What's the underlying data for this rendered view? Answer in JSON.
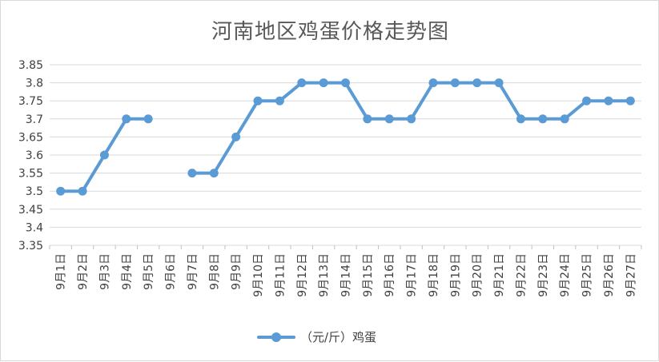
{
  "chart_data": {
    "type": "line",
    "title": "河南地区鸡蛋价格走势图",
    "categories": [
      "9月1日",
      "9月2日",
      "9月3日",
      "9月4日",
      "9月5日",
      "9月6日",
      "9月7日",
      "9月8日",
      "9月9日",
      "9月10日",
      "9月11日",
      "9月12日",
      "9月13日",
      "9月14日",
      "9月15日",
      "9月16日",
      "9月17日",
      "9月18日",
      "9月19日",
      "9月20日",
      "9月21日",
      "9月22日",
      "9月23日",
      "9月24日",
      "9月25日",
      "9月26日",
      "9月27日"
    ],
    "series": [
      {
        "name": "（元/斤）鸡蛋",
        "values": [
          3.5,
          3.5,
          3.6,
          3.7,
          3.7,
          null,
          3.55,
          3.55,
          3.65,
          3.75,
          3.75,
          3.8,
          3.8,
          3.8,
          3.7,
          3.7,
          3.7,
          3.8,
          3.8,
          3.8,
          3.8,
          3.7,
          3.7,
          3.7,
          3.75,
          3.75,
          3.75
        ]
      }
    ],
    "ylim": [
      3.35,
      3.85
    ],
    "yticks": [
      "3.35",
      "3.4",
      "3.45",
      "3.5",
      "3.55",
      "3.6",
      "3.65",
      "3.7",
      "3.75",
      "3.8",
      "3.85"
    ],
    "grid": true,
    "legend": "bottom",
    "color": "#5b9bd5"
  }
}
